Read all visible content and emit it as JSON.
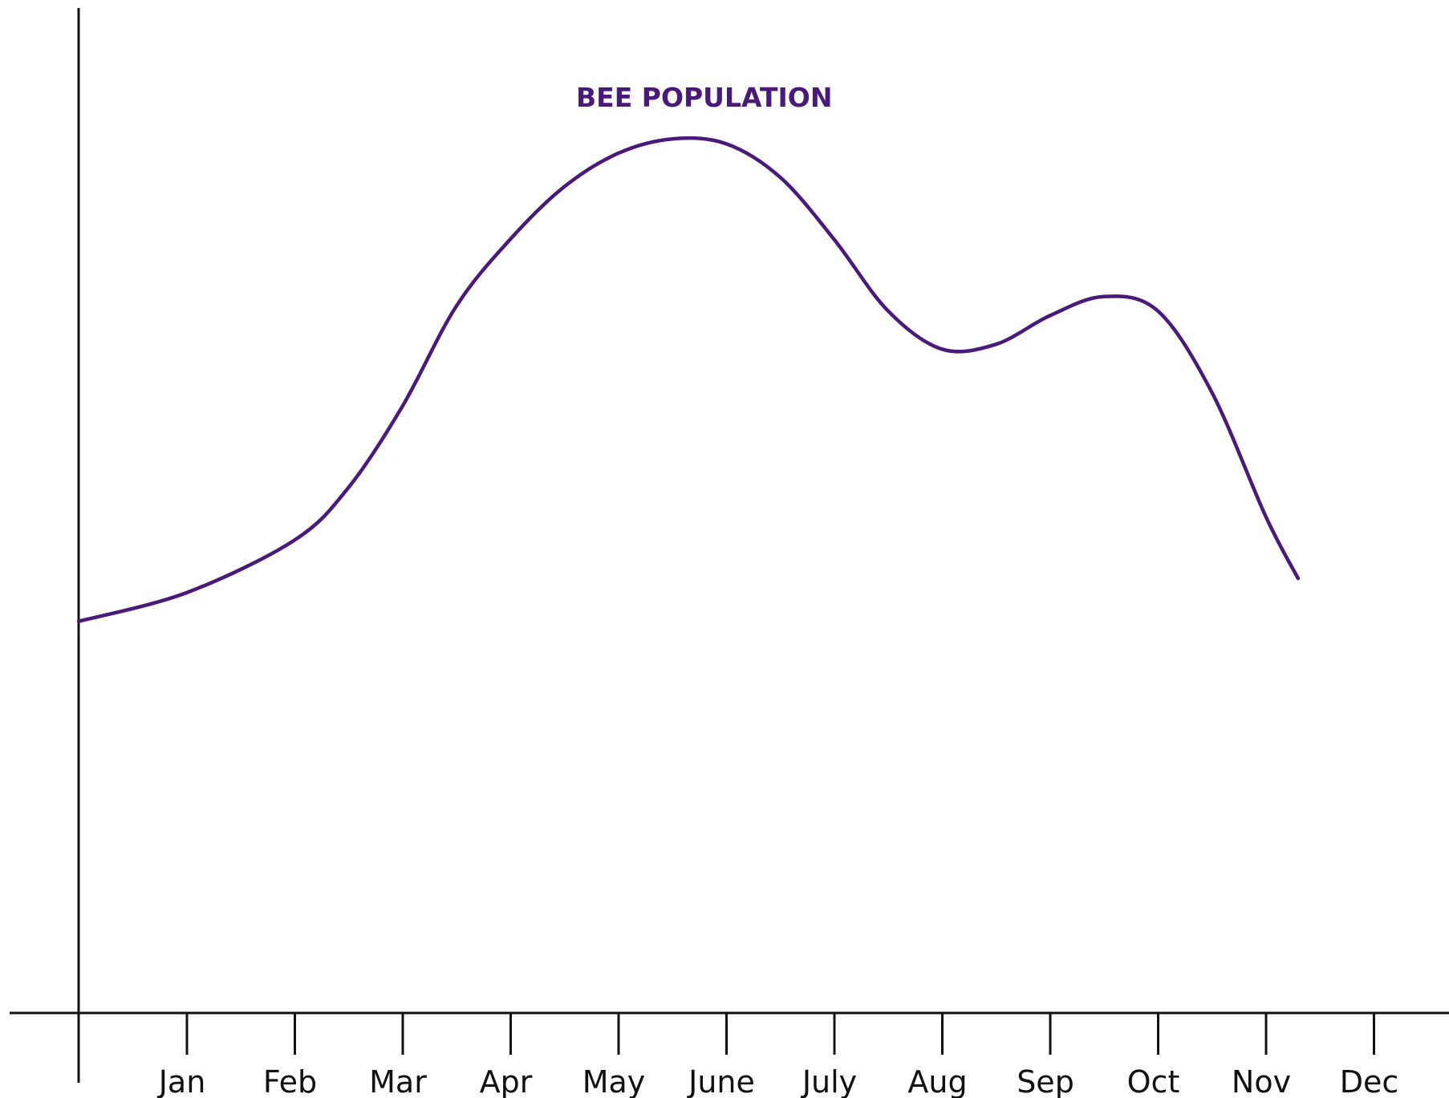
{
  "chart_data": {
    "type": "line",
    "title": "",
    "xlabel": "",
    "ylabel": "",
    "categories": [
      "Jan",
      "Feb",
      "Mar",
      "Apr",
      "May",
      "June",
      "July",
      "Aug",
      "Sep",
      "Oct",
      "Nov",
      "Dec"
    ],
    "y_tick_labels": false,
    "grid": false,
    "ylim": [
      0,
      100
    ],
    "series": [
      {
        "name": "BEE POPULATION",
        "color": "#4a1a7a",
        "x": [
          0,
          1,
          2,
          2.5,
          3,
          3.5,
          4,
          4.5,
          5,
          5.5,
          6,
          6.5,
          7,
          7.5,
          8,
          8.5,
          9,
          9.5,
          10,
          10.5,
          11,
          11.3
        ],
        "y": [
          41,
          44,
          49.5,
          55,
          63.5,
          74,
          81,
          86.5,
          90,
          91.5,
          91,
          87.5,
          81,
          73.5,
          69.5,
          70,
          73,
          75,
          73.5,
          65,
          52,
          45.5
        ]
      }
    ]
  }
}
